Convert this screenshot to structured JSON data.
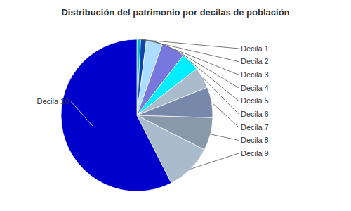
{
  "chart_data": {
    "type": "pie",
    "title": "Distribución del patrimonio por decilas de población",
    "categories": [
      "Decila 1",
      "Decila 2",
      "Decila 3",
      "Decila 4",
      "Decila 5",
      "Decila 6",
      "Decila 7",
      "Decila 8",
      "Decila 9",
      "Decila 10"
    ],
    "values": [
      0.8,
      1.2,
      3.5,
      5.0,
      4.0,
      4.5,
      6.5,
      7.0,
      10.0,
      57.5
    ],
    "colors": [
      "#00BBCC",
      "#1144AA",
      "#AADDFF",
      "#7777DD",
      "#00EEFF",
      "#AABBCC",
      "#7788AA",
      "#8899AA",
      "#AABBCC",
      "#0000CC"
    ]
  }
}
